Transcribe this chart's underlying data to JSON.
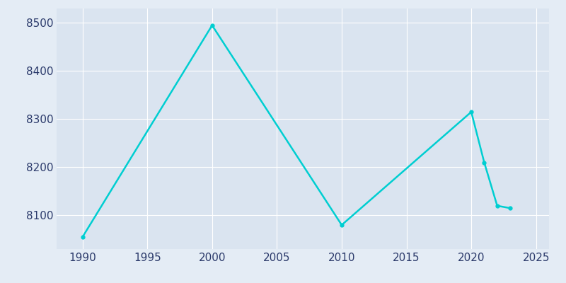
{
  "years": [
    1990,
    2000,
    2010,
    2020,
    2021,
    2022,
    2023
  ],
  "population": [
    8055,
    8495,
    8080,
    8315,
    8210,
    8120,
    8115
  ],
  "line_color": "#00CED1",
  "fig_bg_color": "#E4ECF5",
  "plot_bg_color": "#DAE4F0",
  "text_color": "#2B3A6B",
  "xlim": [
    1988,
    2026
  ],
  "ylim": [
    8030,
    8530
  ],
  "xticks": [
    1990,
    1995,
    2000,
    2005,
    2010,
    2015,
    2020,
    2025
  ],
  "yticks": [
    8100,
    8200,
    8300,
    8400,
    8500
  ],
  "line_width": 1.8,
  "marker": "o",
  "marker_size": 3.5,
  "grid_color": "#FFFFFF",
  "grid_lw": 0.8,
  "tick_labelsize": 11
}
